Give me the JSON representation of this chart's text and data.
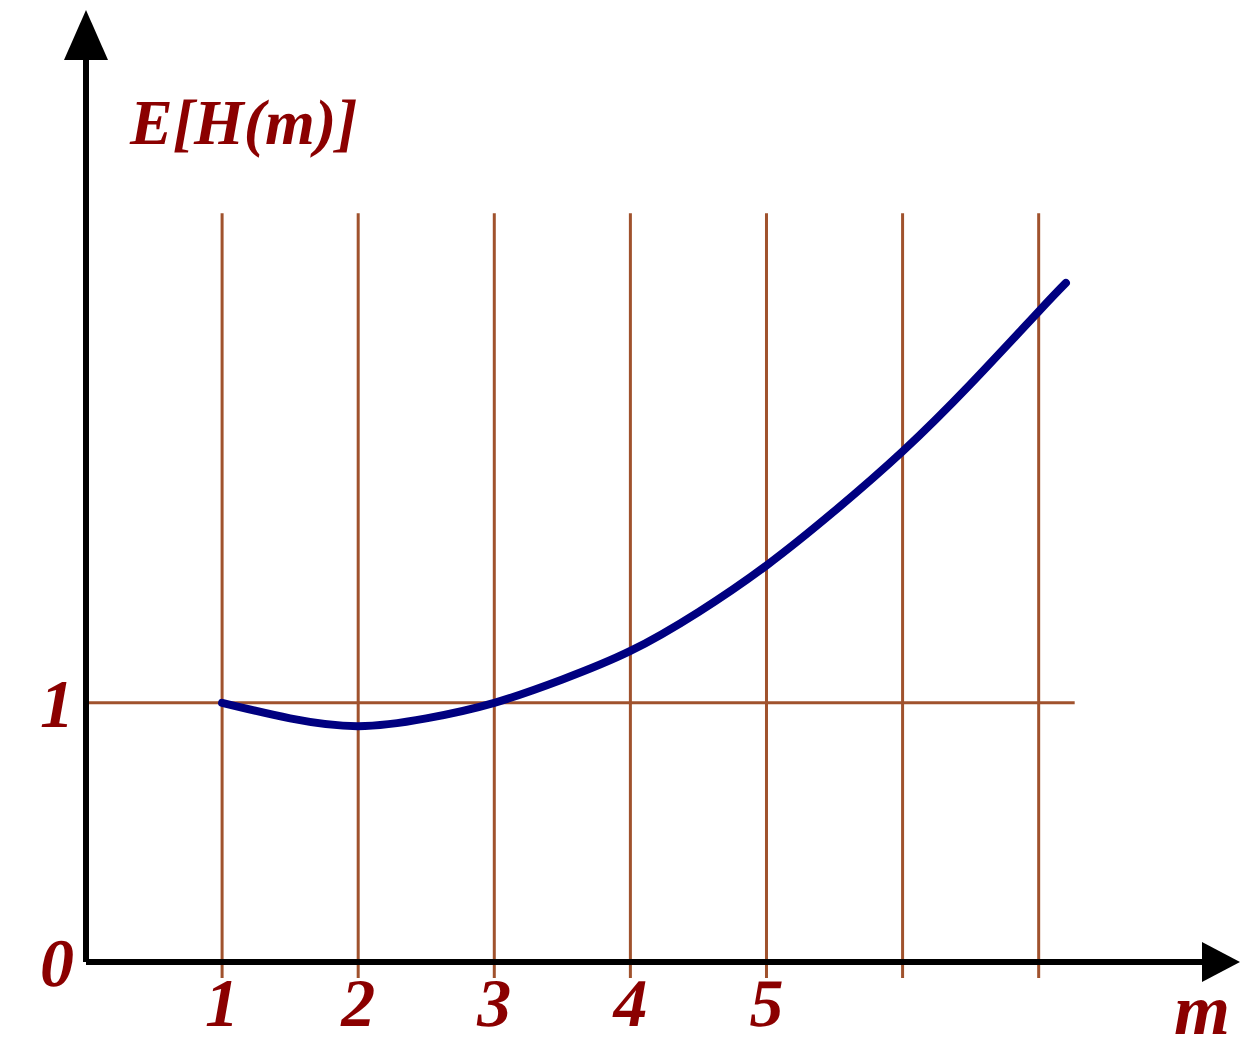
{
  "chart_data": {
    "type": "line",
    "xlabel": "m",
    "ylabel": "E[H(m)]",
    "xlim": [
      0,
      8.2
    ],
    "ylim": [
      0,
      3.48
    ],
    "xticks": [
      1,
      2,
      3,
      4,
      5,
      {
        "value": 6,
        "label": null
      },
      {
        "value": 7,
        "label": null
      }
    ],
    "yticks": [
      0,
      1
    ],
    "grid": true,
    "marker": "none",
    "line_style": "solid",
    "series": [
      {
        "color": "#000080",
        "x": [
          1,
          1.5,
          2,
          2.5,
          3,
          3.5,
          4,
          4.5,
          5,
          5.5,
          6,
          6.5,
          7,
          7.2
        ],
        "values": [
          1,
          0.94,
          0.91,
          0.94,
          1,
          1.09,
          1.2,
          1.35,
          1.53,
          1.74,
          1.97,
          2.23,
          2.51,
          2.62
        ]
      }
    ]
  }
}
